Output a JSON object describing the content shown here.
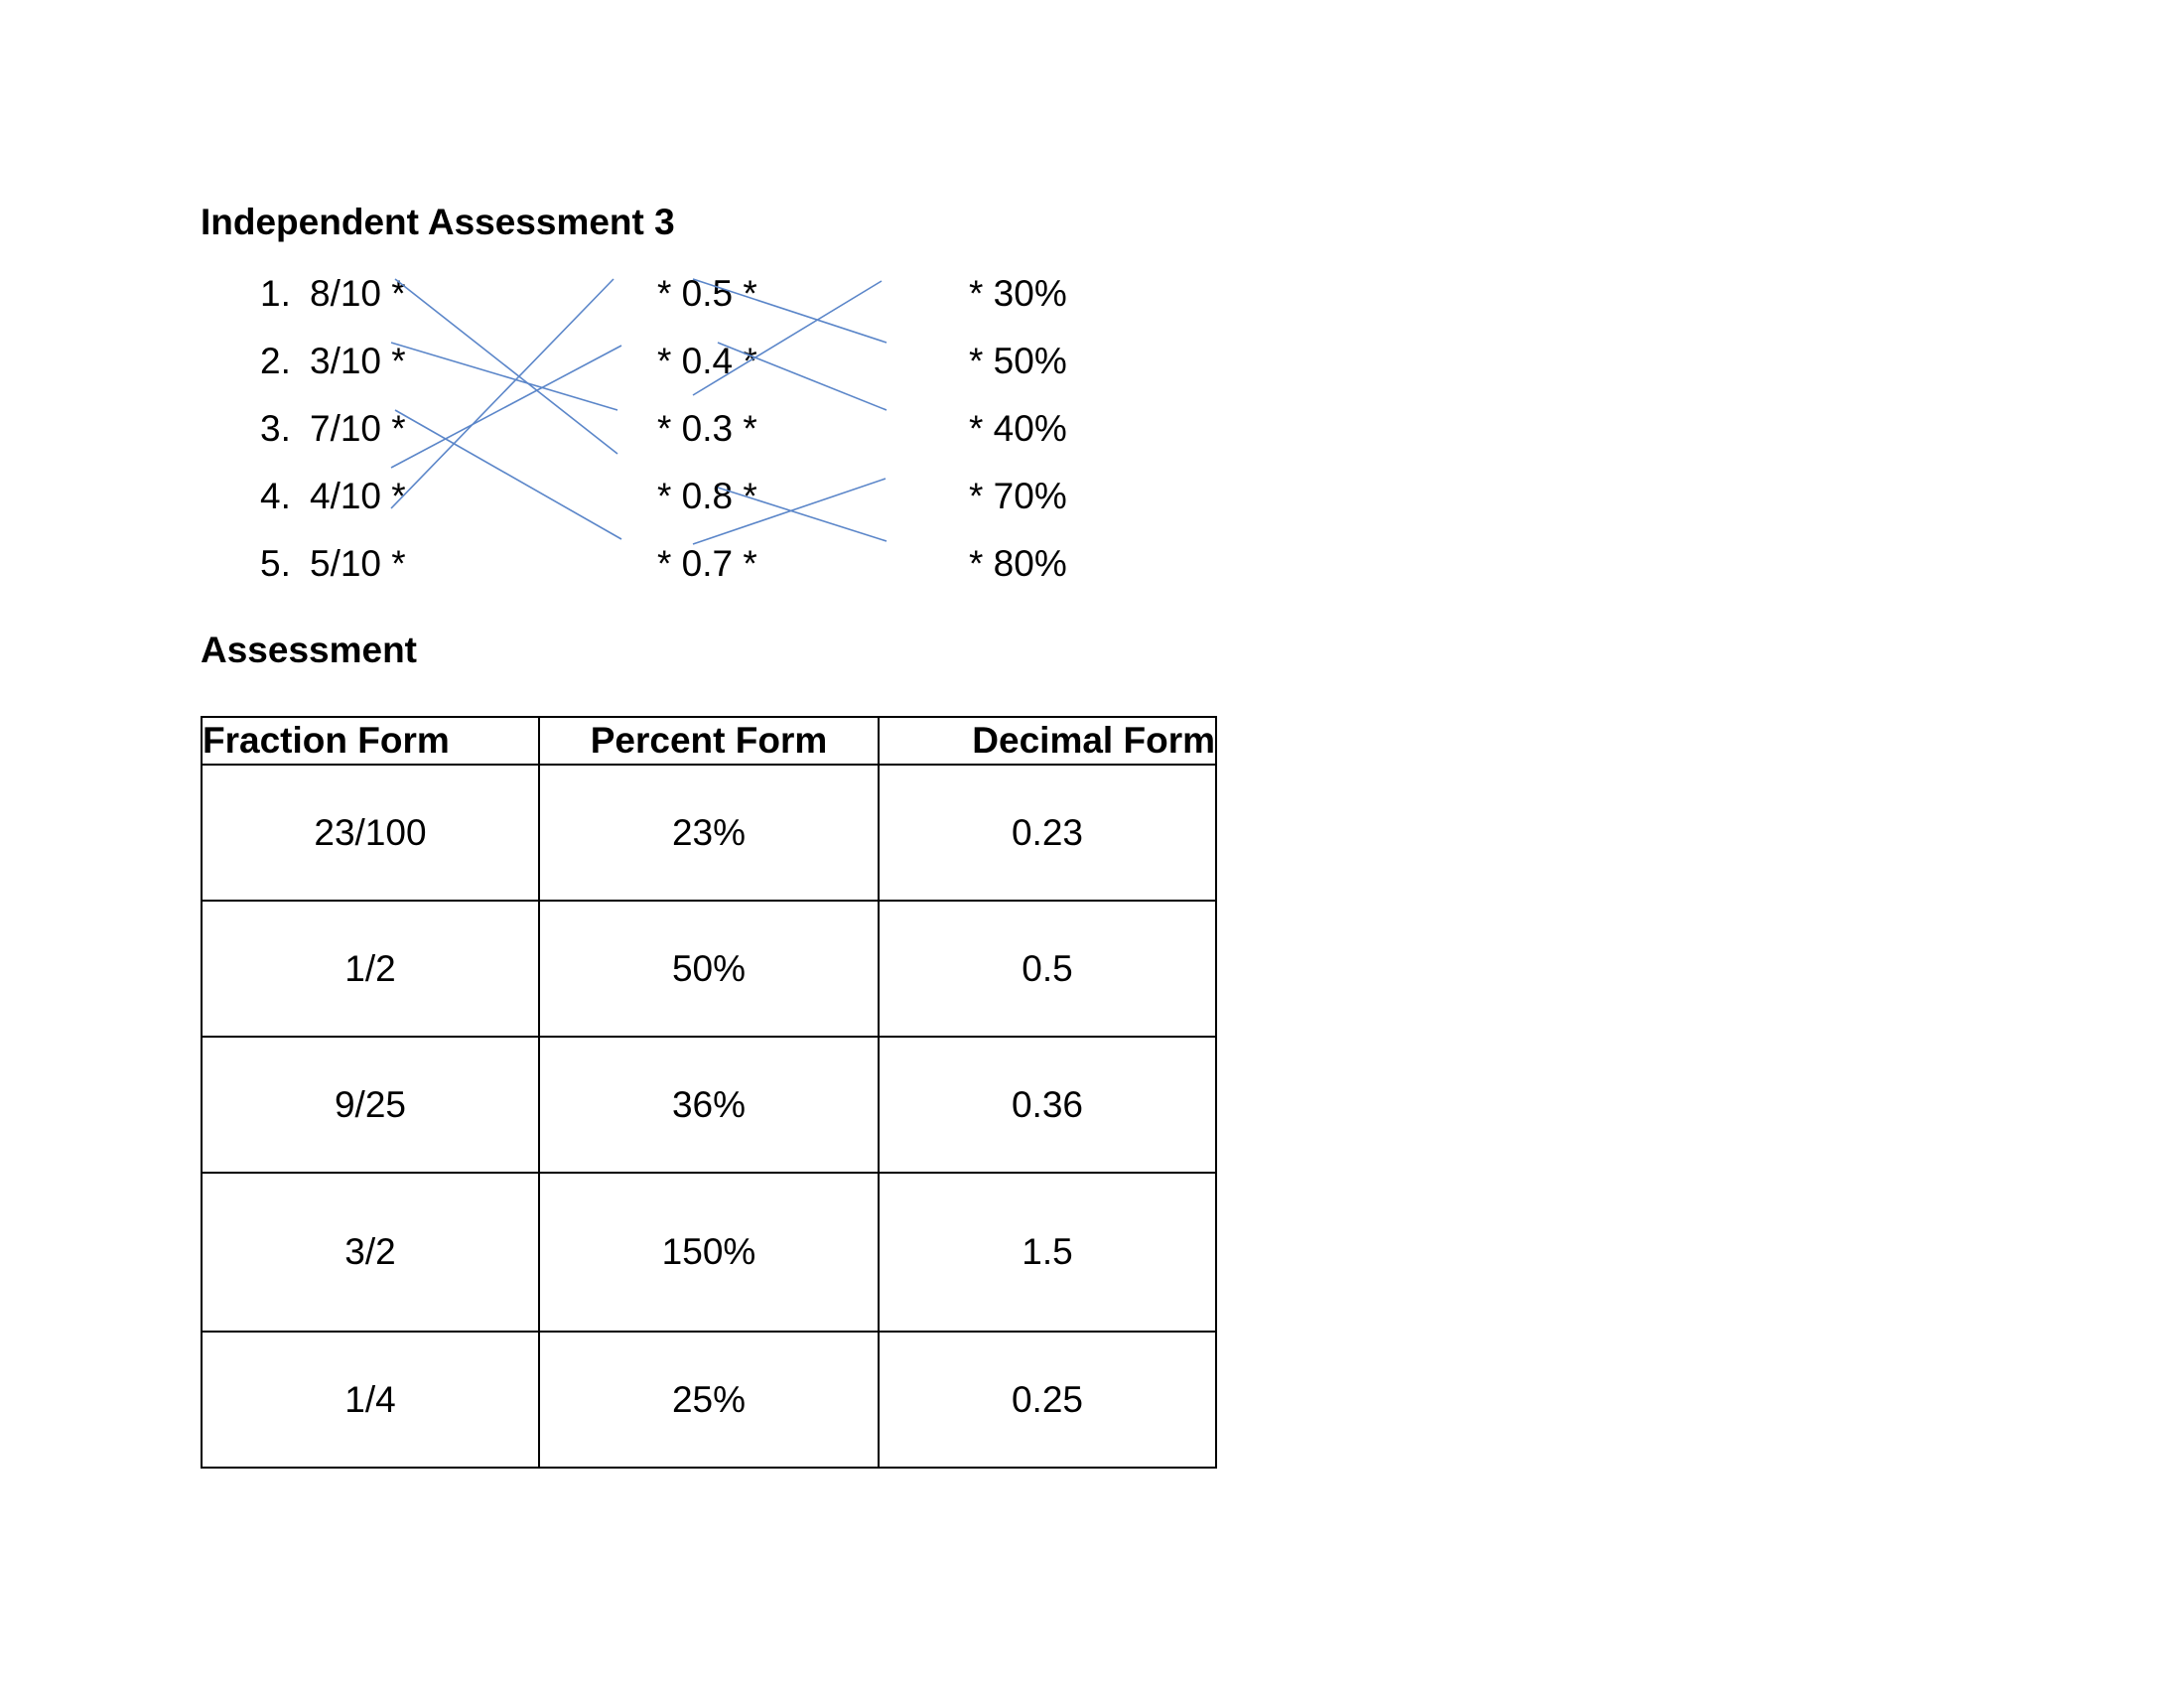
{
  "section1": {
    "title": "Independent Assessment 3",
    "fractions": [
      {
        "num": "1.",
        "text": "8/10 *"
      },
      {
        "num": "2.",
        "text": "3/10 *"
      },
      {
        "num": "3.",
        "text": "7/10 *"
      },
      {
        "num": "4.",
        "text": "4/10 *"
      },
      {
        "num": "5.",
        "text": "5/10 *"
      }
    ],
    "decimals": [
      "* 0.5 *",
      "* 0.4 *",
      "* 0.3 *",
      "* 0.8 *",
      "* 0.7 *"
    ],
    "percents": [
      "* 30%",
      "* 50%",
      "* 40%",
      "* 70%",
      "* 80%"
    ],
    "line_color": "#5b86c9"
  },
  "section2": {
    "title": "Assessment",
    "table": {
      "headers": [
        "Fraction Form",
        "Percent Form",
        "Decimal Form"
      ],
      "rows": [
        [
          "23/100",
          "23%",
          "0.23"
        ],
        [
          "1/2",
          "50%",
          "0.5"
        ],
        [
          "9/25",
          "36%",
          "0.36"
        ],
        [
          "3/2",
          "150%",
          "1.5"
        ],
        [
          "1/4",
          "25%",
          "0.25"
        ]
      ]
    }
  }
}
